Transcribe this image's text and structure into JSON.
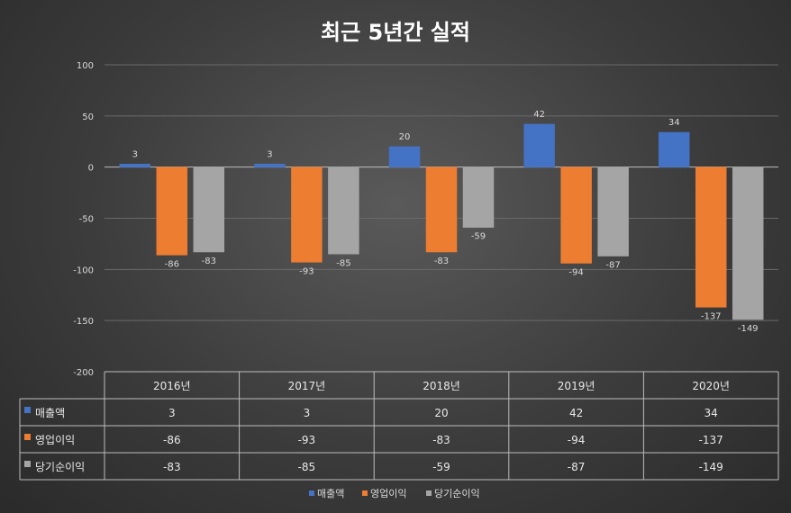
{
  "chart_data": {
    "type": "bar",
    "title": "최근 5년간 실적",
    "categories": [
      "2016년",
      "2017년",
      "2018년",
      "2019년",
      "2020년"
    ],
    "series": [
      {
        "name": "매출액",
        "values": [
          3,
          3,
          20,
          42,
          34
        ],
        "color": "#4472C4"
      },
      {
        "name": "영업이익",
        "values": [
          -86,
          -93,
          -83,
          -94,
          -137
        ],
        "color": "#ED7D31"
      },
      {
        "name": "당기순이익",
        "values": [
          -83,
          -85,
          -59,
          -87,
          -149
        ],
        "color": "#A5A5A5"
      }
    ],
    "ylim": [
      -200,
      100
    ],
    "yticks": [
      "100",
      "50",
      "0",
      "-50",
      "-100",
      "-150",
      "-200"
    ],
    "grid": true,
    "legend": "bottom",
    "data_table": true
  }
}
